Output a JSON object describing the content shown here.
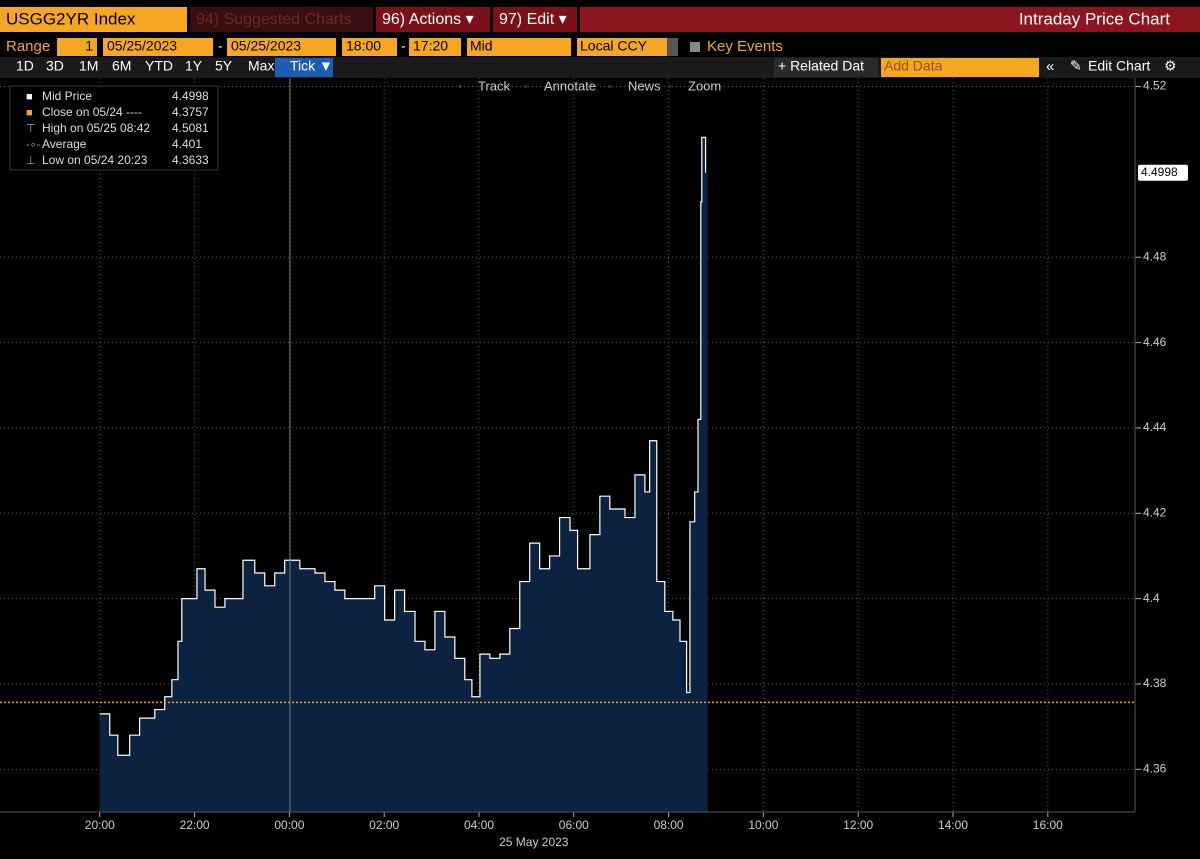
{
  "header": {
    "ticker": "USGG2YR Index",
    "menu": [
      "94) Suggested Charts",
      "96) Actions ▾",
      "97) Edit ▾"
    ],
    "title": "Intraday Price Chart"
  },
  "controls": {
    "range_label": "Range",
    "range_value": "1",
    "start_date": "05/25/2023",
    "dash": "-",
    "end_date": "05/25/2023",
    "start_time": "18:00",
    "end_time": "17:20",
    "field": "Mid",
    "currency": "Local CCY",
    "key_events": "Key Events"
  },
  "periods": [
    "1D",
    "3D",
    "1M",
    "6M",
    "YTD",
    "1Y",
    "5Y",
    "Max",
    "Tick ▼"
  ],
  "right_tools": {
    "related": "+ Related Dat",
    "add_data": "Add Data",
    "edit_chart": "Edit Chart"
  },
  "chart_tools": [
    "Track",
    "Annotate",
    "News",
    "Zoom"
  ],
  "legend": [
    {
      "label": "Mid Price",
      "value": 4.4998
    },
    {
      "label": "Close on 05/24 ----",
      "value": 4.3757
    },
    {
      "label": "High on 05/25 08:42",
      "value": 4.5081
    },
    {
      "label": "Average",
      "value": 4.401
    },
    {
      "label": "Low on 05/24 20:23",
      "value": 4.3633
    }
  ],
  "chart": {
    "type": "area",
    "color": "#ffffff",
    "fill": "#0b2240",
    "close_color": "#f0a020",
    "x": [
      2.0,
      2.21,
      2.38,
      2.63,
      2.84,
      3.16,
      3.37,
      3.52,
      3.65,
      3.73,
      3.9,
      4.05,
      4.22,
      4.43,
      4.64,
      4.85,
      5.02,
      5.27,
      5.48,
      5.69,
      5.9,
      6.22,
      6.54,
      6.75,
      6.96,
      7.17,
      7.49,
      7.8,
      8.01,
      8.22,
      8.43,
      8.65,
      8.86,
      9.07,
      9.28,
      9.49,
      9.7,
      9.85,
      10.02,
      10.23,
      10.44,
      10.65,
      10.86,
      11.07,
      11.28,
      11.49,
      11.7,
      11.92,
      12.08,
      12.34,
      12.55,
      12.76,
      13.08,
      13.29,
      13.5,
      13.6,
      13.75,
      13.92,
      14.09,
      14.24,
      14.38,
      14.45,
      14.55,
      14.62,
      14.68,
      14.7,
      14.78
    ],
    "values": [
      4.373,
      4.368,
      4.3633,
      4.368,
      4.372,
      4.374,
      4.377,
      4.381,
      4.39,
      4.4,
      4.4,
      4.407,
      4.402,
      4.398,
      4.4,
      4.4,
      4.409,
      4.406,
      4.403,
      4.406,
      4.409,
      4.407,
      4.406,
      4.404,
      4.402,
      4.4,
      4.4,
      4.403,
      4.395,
      4.402,
      4.397,
      4.39,
      4.388,
      4.397,
      4.391,
      4.386,
      4.381,
      4.377,
      4.387,
      4.386,
      4.387,
      4.393,
      4.404,
      4.413,
      4.407,
      4.41,
      4.419,
      4.416,
      4.407,
      4.415,
      4.424,
      4.421,
      4.419,
      4.429,
      4.425,
      4.437,
      4.404,
      4.397,
      4.395,
      4.39,
      4.378,
      4.418,
      4.425,
      4.442,
      4.493,
      4.5081,
      4.4998
    ],
    "xlim": [
      0,
      23.9
    ],
    "ylim": [
      4.35,
      4.522
    ],
    "xticks": [
      {
        "value": 2,
        "label": "20:00"
      },
      {
        "value": 4,
        "label": "22:00"
      },
      {
        "value": 6,
        "label": "00:00"
      },
      {
        "value": 8,
        "label": "02:00"
      },
      {
        "value": 10,
        "label": "04:00"
      },
      {
        "value": 12,
        "label": "06:00"
      },
      {
        "value": 14,
        "label": "08:00"
      },
      {
        "value": 16,
        "label": "10:00"
      },
      {
        "value": 18,
        "label": "12:00"
      },
      {
        "value": 20,
        "label": "14:00"
      },
      {
        "value": 22,
        "label": "16:00"
      }
    ],
    "yticks": [
      4.36,
      4.38,
      4.4,
      4.42,
      4.44,
      4.46,
      4.48,
      4.52
    ],
    "date_label": "25 May 2023"
  }
}
